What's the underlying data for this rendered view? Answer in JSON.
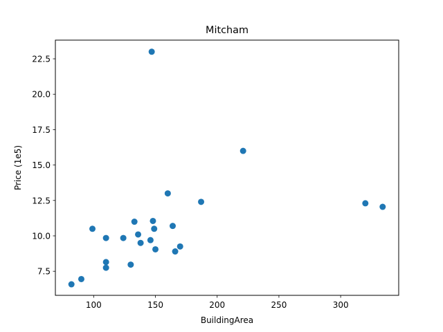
{
  "chart_data": {
    "type": "scatter",
    "title": "Mitcham",
    "xlabel": "BuildingArea",
    "ylabel": "Price (1e5)",
    "xlim": [
      69,
      347
    ],
    "ylim": [
      5.8,
      23.82
    ],
    "xticks": [
      100,
      150,
      200,
      250,
      300
    ],
    "yticks": [
      7.5,
      10.0,
      12.5,
      15.0,
      17.5,
      20.0,
      22.5
    ],
    "xtick_labels": [
      "100",
      "150",
      "200",
      "250",
      "300"
    ],
    "ytick_labels": [
      "7.5",
      "10.0",
      "12.5",
      "15.0",
      "17.5",
      "20.0",
      "22.5"
    ],
    "grid": false,
    "color": "#1f77b4",
    "points": [
      {
        "x": 82,
        "y": 6.58
      },
      {
        "x": 90,
        "y": 6.95
      },
      {
        "x": 99,
        "y": 10.5
      },
      {
        "x": 110,
        "y": 9.85
      },
      {
        "x": 110,
        "y": 8.15
      },
      {
        "x": 110,
        "y": 7.75
      },
      {
        "x": 124,
        "y": 9.85
      },
      {
        "x": 130,
        "y": 7.97
      },
      {
        "x": 133,
        "y": 11.0
      },
      {
        "x": 136,
        "y": 10.1
      },
      {
        "x": 138,
        "y": 9.5
      },
      {
        "x": 146,
        "y": 9.7
      },
      {
        "x": 147,
        "y": 23.0
      },
      {
        "x": 148,
        "y": 11.05
      },
      {
        "x": 149,
        "y": 10.5
      },
      {
        "x": 150,
        "y": 9.05
      },
      {
        "x": 160,
        "y": 13.0
      },
      {
        "x": 164,
        "y": 10.7
      },
      {
        "x": 166,
        "y": 8.9
      },
      {
        "x": 170,
        "y": 9.25
      },
      {
        "x": 187,
        "y": 12.4
      },
      {
        "x": 221,
        "y": 16.0
      },
      {
        "x": 320,
        "y": 12.3
      },
      {
        "x": 334,
        "y": 12.05
      }
    ]
  }
}
